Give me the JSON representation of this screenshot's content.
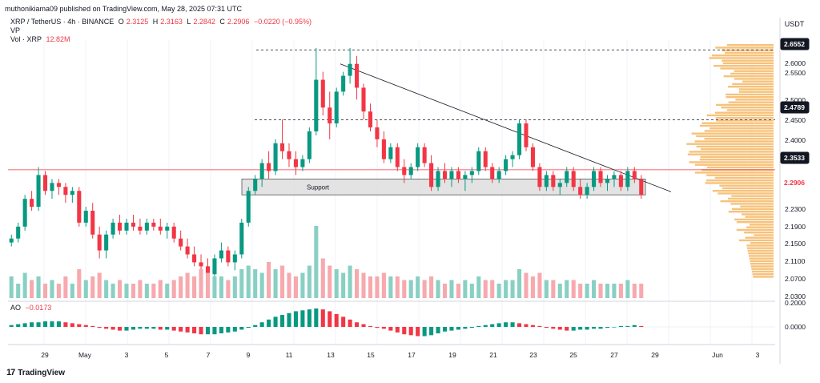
{
  "header": {
    "published": "muthonikiama09 published on TradingView.com, May 28, 2025 07:31 UTC"
  },
  "symbol_row": {
    "title": "XRP / TetherUS · 4h · BINANCE",
    "o_label": "O",
    "o_value": "2.3125",
    "h_label": "H",
    "h_value": "2.3163",
    "l_label": "L",
    "l_value": "2.2842",
    "c_label": "C",
    "c_value": "2.2906",
    "change": "−0.0220 (−0.95%)"
  },
  "vp_label": "VP",
  "vol_row": {
    "label": "Vol · XRP",
    "value": "12.82M"
  },
  "ao_row": {
    "label": "AO",
    "value": "−0.0173"
  },
  "currency": "USDT",
  "brand": "TradingView",
  "colors": {
    "up": "#089981",
    "down": "#f23645",
    "vp": "#f7c27a",
    "ao_up": "#089981",
    "ao_down": "#f23645",
    "res_line": "#f23645"
  },
  "chart_data": {
    "type": "candlestick",
    "price_axis_ticks": [
      "2.6000",
      "2.5500",
      "2.5000",
      "2.4500",
      "2.4000",
      "2.3000",
      "2.2300",
      "2.1900",
      "2.1500",
      "2.1100",
      "2.0700",
      "2.0300"
    ],
    "price_highlights": [
      {
        "value": "2.6552",
        "style": "dark"
      },
      {
        "value": "2.4789",
        "style": "dark"
      },
      {
        "value": "2.3533",
        "style": "dark"
      },
      {
        "value": "2.2906",
        "style": "red"
      }
    ],
    "ao_axis_ticks": [
      "0.2000",
      "0.0000"
    ],
    "x_tick_labels": [
      "29",
      "May",
      "3",
      "5",
      "7",
      "9",
      "11",
      "13",
      "15",
      "17",
      "19",
      "21",
      "23",
      "25",
      "27",
      "29",
      "Jun",
      "3"
    ],
    "annotations": {
      "support_label": "Support"
    },
    "ylim": [
      2.03,
      2.68
    ],
    "levels": {
      "top": 2.6552,
      "mid": 2.4789,
      "red": 2.3533,
      "last": 2.2906
    },
    "support_zone": [
      2.29,
      2.33
    ],
    "trendline": [
      [
        52,
        2.62
      ],
      [
        96,
        2.33
      ]
    ],
    "candles_ohlc": [
      [
        2.17,
        2.19,
        2.16,
        2.18
      ],
      [
        2.18,
        2.22,
        2.17,
        2.21
      ],
      [
        2.21,
        2.29,
        2.2,
        2.28
      ],
      [
        2.28,
        2.3,
        2.25,
        2.26
      ],
      [
        2.26,
        2.36,
        2.25,
        2.34
      ],
      [
        2.34,
        2.35,
        2.29,
        2.3
      ],
      [
        2.3,
        2.33,
        2.28,
        2.32
      ],
      [
        2.32,
        2.33,
        2.29,
        2.31
      ],
      [
        2.31,
        2.32,
        2.27,
        2.29
      ],
      [
        2.29,
        2.31,
        2.27,
        2.3
      ],
      [
        2.3,
        2.31,
        2.21,
        2.22
      ],
      [
        2.22,
        2.26,
        2.21,
        2.25
      ],
      [
        2.25,
        2.27,
        2.18,
        2.19
      ],
      [
        2.19,
        2.21,
        2.13,
        2.15
      ],
      [
        2.15,
        2.2,
        2.13,
        2.19
      ],
      [
        2.19,
        2.23,
        2.18,
        2.22
      ],
      [
        2.22,
        2.24,
        2.19,
        2.2
      ],
      [
        2.2,
        2.23,
        2.19,
        2.22
      ],
      [
        2.22,
        2.24,
        2.2,
        2.21
      ],
      [
        2.21,
        2.23,
        2.19,
        2.2
      ],
      [
        2.2,
        2.23,
        2.19,
        2.22
      ],
      [
        2.22,
        2.23,
        2.2,
        2.21
      ],
      [
        2.21,
        2.23,
        2.19,
        2.2
      ],
      [
        2.2,
        2.22,
        2.18,
        2.21
      ],
      [
        2.21,
        2.22,
        2.17,
        2.18
      ],
      [
        2.18,
        2.2,
        2.15,
        2.16
      ],
      [
        2.16,
        2.18,
        2.13,
        2.14
      ],
      [
        2.14,
        2.16,
        2.11,
        2.12
      ],
      [
        2.12,
        2.14,
        2.09,
        2.11
      ],
      [
        2.11,
        2.13,
        2.08,
        2.09
      ],
      [
        2.09,
        2.14,
        2.08,
        2.13
      ],
      [
        2.13,
        2.17,
        2.12,
        2.15
      ],
      [
        2.15,
        2.16,
        2.11,
        2.12
      ],
      [
        2.12,
        2.15,
        2.1,
        2.14
      ],
      [
        2.14,
        2.23,
        2.13,
        2.22
      ],
      [
        2.22,
        2.31,
        2.21,
        2.3
      ],
      [
        2.3,
        2.34,
        2.29,
        2.33
      ],
      [
        2.33,
        2.38,
        2.31,
        2.37
      ],
      [
        2.37,
        2.4,
        2.33,
        2.35
      ],
      [
        2.35,
        2.43,
        2.34,
        2.42
      ],
      [
        2.42,
        2.48,
        2.38,
        2.4
      ],
      [
        2.4,
        2.42,
        2.36,
        2.38
      ],
      [
        2.38,
        2.4,
        2.34,
        2.36
      ],
      [
        2.36,
        2.39,
        2.35,
        2.38
      ],
      [
        2.38,
        2.46,
        2.37,
        2.45
      ],
      [
        2.45,
        2.66,
        2.44,
        2.58
      ],
      [
        2.58,
        2.6,
        2.49,
        2.51
      ],
      [
        2.51,
        2.55,
        2.43,
        2.47
      ],
      [
        2.47,
        2.56,
        2.46,
        2.55
      ],
      [
        2.55,
        2.6,
        2.54,
        2.59
      ],
      [
        2.59,
        2.66,
        2.57,
        2.62
      ],
      [
        2.62,
        2.64,
        2.53,
        2.56
      ],
      [
        2.56,
        2.57,
        2.48,
        2.5
      ],
      [
        2.5,
        2.52,
        2.45,
        2.46
      ],
      [
        2.46,
        2.48,
        2.41,
        2.43
      ],
      [
        2.43,
        2.45,
        2.37,
        2.38
      ],
      [
        2.38,
        2.42,
        2.37,
        2.41
      ],
      [
        2.41,
        2.42,
        2.35,
        2.36
      ],
      [
        2.36,
        2.38,
        2.32,
        2.34
      ],
      [
        2.34,
        2.37,
        2.33,
        2.36
      ],
      [
        2.36,
        2.42,
        2.35,
        2.41
      ],
      [
        2.41,
        2.42,
        2.36,
        2.37
      ],
      [
        2.37,
        2.39,
        2.3,
        2.31
      ],
      [
        2.31,
        2.36,
        2.3,
        2.35
      ],
      [
        2.35,
        2.37,
        2.32,
        2.33
      ],
      [
        2.33,
        2.36,
        2.31,
        2.35
      ],
      [
        2.35,
        2.36,
        2.32,
        2.33
      ],
      [
        2.33,
        2.35,
        2.3,
        2.34
      ],
      [
        2.34,
        2.36,
        2.32,
        2.35
      ],
      [
        2.35,
        2.41,
        2.34,
        2.4
      ],
      [
        2.4,
        2.41,
        2.35,
        2.36
      ],
      [
        2.36,
        2.37,
        2.32,
        2.33
      ],
      [
        2.33,
        2.36,
        2.32,
        2.35
      ],
      [
        2.35,
        2.39,
        2.34,
        2.38
      ],
      [
        2.38,
        2.4,
        2.36,
        2.39
      ],
      [
        2.39,
        2.48,
        2.38,
        2.47
      ],
      [
        2.47,
        2.48,
        2.4,
        2.41
      ],
      [
        2.41,
        2.42,
        2.35,
        2.36
      ],
      [
        2.36,
        2.37,
        2.3,
        2.31
      ],
      [
        2.31,
        2.35,
        2.3,
        2.34
      ],
      [
        2.34,
        2.35,
        2.3,
        2.31
      ],
      [
        2.31,
        2.33,
        2.29,
        2.32
      ],
      [
        2.32,
        2.36,
        2.31,
        2.35
      ],
      [
        2.35,
        2.36,
        2.3,
        2.31
      ],
      [
        2.31,
        2.33,
        2.28,
        2.29
      ],
      [
        2.29,
        2.32,
        2.28,
        2.31
      ],
      [
        2.31,
        2.36,
        2.3,
        2.35
      ],
      [
        2.35,
        2.36,
        2.31,
        2.32
      ],
      [
        2.32,
        2.34,
        2.3,
        2.33
      ],
      [
        2.33,
        2.35,
        2.31,
        2.34
      ],
      [
        2.34,
        2.35,
        2.3,
        2.31
      ],
      [
        2.31,
        2.36,
        2.3,
        2.35
      ],
      [
        2.35,
        2.36,
        2.32,
        2.33
      ],
      [
        2.33,
        2.34,
        2.28,
        2.29
      ]
    ],
    "volume_rel": [
      0.3,
      0.2,
      0.35,
      0.25,
      0.3,
      0.2,
      0.25,
      0.2,
      0.3,
      0.2,
      0.4,
      0.25,
      0.3,
      0.35,
      0.25,
      0.2,
      0.25,
      0.2,
      0.2,
      0.25,
      0.2,
      0.2,
      0.25,
      0.2,
      0.25,
      0.3,
      0.35,
      0.3,
      0.4,
      0.35,
      0.3,
      0.3,
      0.25,
      0.3,
      0.4,
      0.45,
      0.4,
      0.35,
      0.5,
      0.4,
      0.45,
      0.35,
      0.3,
      0.35,
      0.45,
      1.0,
      0.55,
      0.45,
      0.4,
      0.35,
      0.45,
      0.4,
      0.35,
      0.3,
      0.3,
      0.35,
      0.3,
      0.3,
      0.25,
      0.25,
      0.3,
      0.25,
      0.3,
      0.25,
      0.2,
      0.25,
      0.2,
      0.25,
      0.2,
      0.3,
      0.25,
      0.25,
      0.2,
      0.25,
      0.25,
      0.4,
      0.35,
      0.3,
      0.35,
      0.25,
      0.25,
      0.2,
      0.25,
      0.25,
      0.2,
      0.2,
      0.25,
      0.2,
      0.2,
      0.2,
      0.2,
      0.25,
      0.2,
      0.2
    ],
    "ao_values": [
      0.02,
      0.03,
      0.04,
      0.05,
      0.05,
      0.06,
      0.06,
      0.06,
      0.05,
      0.04,
      0.03,
      0.02,
      0.01,
      -0.01,
      -0.02,
      -0.03,
      -0.04,
      -0.04,
      -0.03,
      -0.02,
      -0.02,
      -0.02,
      -0.03,
      -0.03,
      -0.04,
      -0.05,
      -0.06,
      -0.07,
      -0.08,
      -0.08,
      -0.08,
      -0.07,
      -0.06,
      -0.05,
      -0.03,
      -0.01,
      0.02,
      0.05,
      0.08,
      0.11,
      0.13,
      0.15,
      0.17,
      0.18,
      0.19,
      0.2,
      0.19,
      0.17,
      0.14,
      0.11,
      0.08,
      0.05,
      0.03,
      0.01,
      -0.01,
      -0.02,
      -0.04,
      -0.06,
      -0.08,
      -0.09,
      -0.1,
      -0.1,
      -0.09,
      -0.07,
      -0.05,
      -0.04,
      -0.03,
      -0.02,
      -0.01,
      0.01,
      0.02,
      0.03,
      0.04,
      0.05,
      0.05,
      0.04,
      0.03,
      0.02,
      0.01,
      -0.01,
      -0.02,
      -0.03,
      -0.04,
      -0.04,
      -0.03,
      -0.03,
      -0.02,
      -0.02,
      -0.01,
      0.0,
      0.01,
      0.01,
      0.02,
      0.01
    ]
  }
}
